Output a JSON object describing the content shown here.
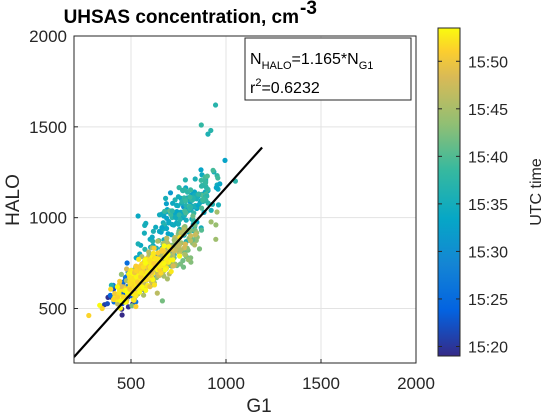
{
  "chart_data": {
    "type": "scatter",
    "title": "UHSAS concentration, cm",
    "title_superscript": "-3",
    "xlabel": "G1",
    "ylabel": "HALO",
    "xlim": [
      200,
      2000
    ],
    "ylim": [
      200,
      2000
    ],
    "xticks": [
      "500",
      "1000",
      "1500",
      "2000"
    ],
    "yticks": [
      "500",
      "1000",
      "1500",
      "2000"
    ],
    "grid": true,
    "fit_line": {
      "slope": 1.165,
      "x_range": [
        200,
        1190
      ]
    },
    "annotation": {
      "line1_prefix": "N",
      "line1_sub1": "HALO",
      "line1_mid": "=1.165*N",
      "line1_sub2": "G1",
      "line2_prefix": "r",
      "line2_sup": "2",
      "line2_rest": "=0.6232"
    },
    "colorbar": {
      "label": "UTC time",
      "colormap": "parula",
      "range_minutes": [
        19.0,
        53.5
      ],
      "ticks": [
        "15:20",
        "15:25",
        "15:30",
        "15:35",
        "15:40",
        "15:45",
        "15:50"
      ],
      "tick_values_minutes": [
        20,
        25,
        30,
        35,
        40,
        45,
        50
      ]
    },
    "clusters": [
      {
        "time_min": 20.0,
        "cx": 470,
        "cy": 590,
        "sx": 55,
        "sy": 55,
        "rho": 0.6,
        "n": 35
      },
      {
        "time_min": 25.0,
        "cx": 530,
        "cy": 650,
        "sx": 80,
        "sy": 75,
        "rho": 0.7,
        "n": 40
      },
      {
        "time_min": 34.5,
        "cx": 770,
        "cy": 1020,
        "sx": 110,
        "sy": 110,
        "rho": 0.75,
        "n": 140
      },
      {
        "time_min": 38.0,
        "cx": 820,
        "cy": 1110,
        "sx": 70,
        "sy": 70,
        "rho": 0.5,
        "n": 55
      },
      {
        "time_min": 43.0,
        "cx": 720,
        "cy": 820,
        "sx": 95,
        "sy": 90,
        "rho": 0.75,
        "n": 90
      },
      {
        "time_min": 46.0,
        "cx": 640,
        "cy": 750,
        "sx": 85,
        "sy": 85,
        "rho": 0.75,
        "n": 150
      },
      {
        "time_min": 52.0,
        "cx": 560,
        "cy": 680,
        "sx": 75,
        "sy": 75,
        "rho": 0.8,
        "n": 220
      }
    ],
    "outliers": [
      {
        "x": 945,
        "y": 1620,
        "time_min": 37.0
      },
      {
        "x": 870,
        "y": 1510,
        "time_min": 38.0
      },
      {
        "x": 920,
        "y": 1480,
        "time_min": 37.0
      },
      {
        "x": 905,
        "y": 1460,
        "time_min": 36.0
      }
    ]
  }
}
